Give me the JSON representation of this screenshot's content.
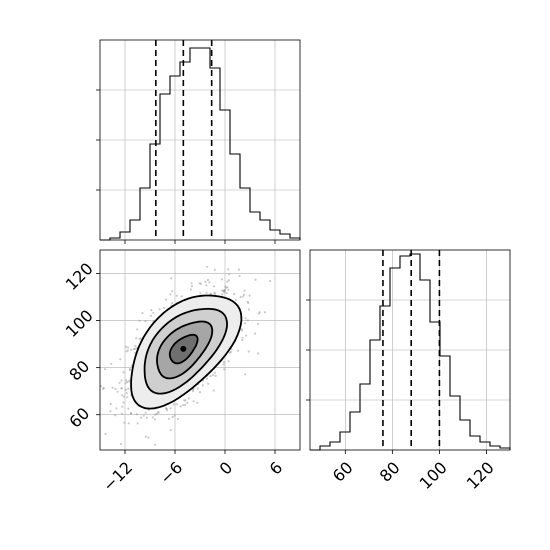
{
  "chart_data": {
    "type": "corner",
    "parameters": [
      {
        "name": "",
        "range": [
          -15,
          9
        ],
        "ticks": [
          -12,
          -6,
          0,
          6
        ],
        "tick_labels": [
          "−12",
          "−6",
          "0",
          "6"
        ],
        "quantiles": [
          -8.3,
          -5.0,
          -1.6
        ],
        "hist_edges_start": -15,
        "hist_bin_width": 1.2,
        "hist_values": [
          0.0,
          0.01,
          0.04,
          0.1,
          0.26,
          0.48,
          0.73,
          0.82,
          0.89,
          0.96,
          0.96,
          0.86,
          0.65,
          0.43,
          0.26,
          0.14,
          0.1,
          0.05,
          0.03,
          0.01
        ]
      },
      {
        "name": "",
        "range": [
          45,
          130
        ],
        "ticks": [
          60,
          80,
          100,
          120
        ],
        "tick_labels": [
          "60",
          "80",
          "100",
          "120"
        ],
        "quantiles": [
          76.0,
          88.0,
          100.0
        ],
        "hist_edges_start": 45,
        "hist_bin_width": 4.25,
        "hist_values": [
          0.0,
          0.02,
          0.04,
          0.09,
          0.19,
          0.33,
          0.55,
          0.72,
          0.91,
          0.97,
          0.98,
          0.85,
          0.64,
          0.47,
          0.27,
          0.15,
          0.07,
          0.04,
          0.02,
          0.01
        ]
      }
    ],
    "hist_ylim": [
      0,
      1
    ],
    "hist_grid_ticks": [
      0.25,
      0.5,
      0.75
    ],
    "density_ylim": [
      45,
      130
    ],
    "density_yticks": [
      60,
      80,
      100,
      120
    ],
    "density_ytick_labels": [
      "60",
      "80",
      "100",
      "120"
    ],
    "density_center": [
      -5.0,
      88.0
    ],
    "density_sigma": [
      3.3,
      12.0
    ],
    "density_correlation": 0.55,
    "contour_levels_sigma": [
      0.5,
      1.0,
      1.5,
      2.0
    ],
    "grid": true,
    "colors": {
      "line": "#000000",
      "points": "#8c8c8c",
      "grid": "#b0b0b0"
    }
  }
}
